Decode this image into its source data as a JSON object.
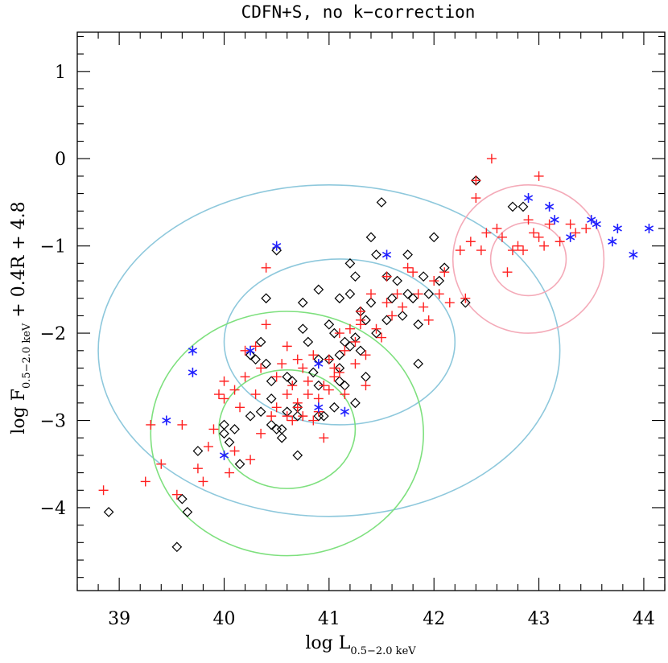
{
  "chart_data": {
    "type": "scatter",
    "title": "CDFN+S, no k−correction",
    "xlabel": {
      "main": "log L",
      "subscript": "0.5−2.0 keV"
    },
    "ylabel": {
      "main": "log F",
      "subscript": "0.5−2.0 keV",
      "suffix": " + 0.4R + 4.8"
    },
    "xlim": [
      38.6,
      44.2
    ],
    "ylim": [
      -4.95,
      1.45
    ],
    "x_ticks": [
      39,
      40,
      41,
      42,
      43,
      44
    ],
    "x_tick_labels": [
      "39",
      "40",
      "41",
      "42",
      "43",
      "44"
    ],
    "y_ticks": [
      1,
      0,
      -1,
      -2,
      -3,
      -4
    ],
    "y_tick_labels": [
      "1",
      "0",
      "−1",
      "−2",
      "−3",
      "−4"
    ],
    "colors": {
      "diamond": "#000000",
      "plus": "#ff2020",
      "asterisk": "#2020ff",
      "cyan_ellipse": "#8ec8dc",
      "green_ellipse": "#7ee07e",
      "pink_ellipse": "#f4aab8"
    },
    "ellipses": [
      {
        "name": "cyan-outer",
        "color": "cyan",
        "cx": 41.0,
        "cy": -2.2,
        "rx": 2.2,
        "ry": 1.9
      },
      {
        "name": "cyan-inner",
        "color": "cyan",
        "cx": 41.1,
        "cy": -2.1,
        "rx": 1.1,
        "ry": 0.95
      },
      {
        "name": "green-outer",
        "color": "green",
        "cx": 40.6,
        "cy": -3.15,
        "rx": 1.3,
        "ry": 1.4
      },
      {
        "name": "green-inner",
        "color": "green",
        "cx": 40.6,
        "cy": -3.1,
        "rx": 0.65,
        "ry": 0.68
      },
      {
        "name": "pink-outer",
        "color": "pink",
        "cx": 42.9,
        "cy": -1.15,
        "rx": 0.72,
        "ry": 0.85
      },
      {
        "name": "pink-inner",
        "color": "pink",
        "cx": 42.9,
        "cy": -1.15,
        "rx": 0.36,
        "ry": 0.42
      }
    ],
    "series": [
      {
        "name": "diamonds",
        "marker": "diamond",
        "x": [
          38.9,
          39.55,
          39.6,
          39.65,
          39.75,
          40.0,
          40.0,
          40.05,
          40.15,
          40.1,
          40.25,
          40.25,
          40.3,
          40.35,
          40.4,
          40.4,
          40.45,
          40.45,
          40.45,
          40.5,
          40.5,
          40.55,
          40.6,
          40.6,
          40.65,
          40.7,
          40.7,
          40.7,
          40.75,
          40.8,
          40.85,
          40.9,
          40.9,
          40.95,
          41.0,
          41.0,
          41.05,
          41.1,
          41.1,
          41.1,
          41.1,
          41.15,
          41.15,
          41.2,
          41.2,
          41.2,
          41.25,
          41.25,
          41.3,
          41.3,
          41.35,
          41.4,
          41.4,
          41.45,
          41.45,
          41.5,
          41.55,
          41.55,
          41.6,
          41.65,
          41.7,
          41.75,
          41.8,
          41.85,
          41.85,
          41.9,
          41.95,
          42.0,
          42.05,
          42.1,
          42.3,
          42.4,
          42.75,
          42.85,
          40.9,
          41.05,
          41.25,
          40.75,
          40.55,
          41.75,
          41.35,
          40.35,
          40.9
        ],
        "y": [
          -4.05,
          -4.45,
          -3.9,
          -4.05,
          -3.35,
          -3.05,
          -3.15,
          -3.25,
          -3.5,
          -3.1,
          -2.95,
          -2.25,
          -2.3,
          -2.1,
          -2.35,
          -1.6,
          -3.05,
          -2.55,
          -2.75,
          -3.1,
          -1.05,
          -3.1,
          -2.5,
          -2.9,
          -2.55,
          -2.85,
          -2.95,
          -3.4,
          -1.65,
          -2.1,
          -2.45,
          -2.3,
          -1.5,
          -2.95,
          -1.9,
          -2.3,
          -2.0,
          -1.6,
          -2.25,
          -2.4,
          -2.55,
          -2.1,
          -2.6,
          -2.15,
          -1.2,
          -1.55,
          -2.05,
          -2.8,
          -1.75,
          -2.2,
          -2.5,
          -1.65,
          -0.9,
          -1.1,
          -2.0,
          -0.5,
          -1.85,
          -1.35,
          -1.6,
          -1.4,
          -1.8,
          -1.1,
          -1.6,
          -1.9,
          -2.35,
          -1.35,
          -1.55,
          -0.9,
          -1.4,
          -1.25,
          -1.65,
          -0.25,
          -0.55,
          -0.55,
          -2.95,
          -2.85,
          -1.35,
          -1.95,
          -3.2,
          -1.55,
          -1.85,
          -2.9,
          -2.6
        ]
      },
      {
        "name": "plus",
        "marker": "plus",
        "x": [
          38.85,
          39.25,
          39.3,
          39.4,
          39.55,
          39.6,
          39.75,
          39.8,
          39.85,
          39.9,
          39.95,
          40.0,
          40.05,
          40.1,
          40.1,
          40.15,
          40.2,
          40.25,
          40.3,
          40.3,
          40.35,
          40.35,
          40.4,
          40.45,
          40.5,
          40.5,
          40.55,
          40.6,
          40.6,
          40.65,
          40.65,
          40.7,
          40.7,
          40.75,
          40.75,
          40.8,
          40.8,
          40.85,
          40.85,
          40.9,
          40.95,
          40.95,
          41.0,
          41.0,
          41.05,
          41.1,
          41.1,
          41.15,
          41.15,
          41.2,
          41.25,
          41.25,
          41.3,
          41.3,
          41.35,
          41.35,
          41.4,
          41.45,
          41.5,
          41.55,
          41.55,
          41.6,
          41.65,
          41.7,
          41.75,
          41.8,
          41.85,
          41.9,
          41.95,
          42.0,
          42.05,
          42.1,
          42.15,
          42.25,
          42.3,
          42.35,
          42.4,
          42.45,
          42.5,
          42.55,
          42.6,
          42.65,
          42.7,
          42.75,
          42.8,
          42.85,
          42.9,
          42.95,
          43.0,
          43.05,
          43.1,
          43.2,
          43.3,
          43.35,
          43.45,
          40.0,
          40.4,
          40.7,
          41.05,
          40.2,
          41.3,
          40.6,
          40.9,
          42.4,
          43.0
        ],
        "y": [
          -3.8,
          -3.7,
          -3.05,
          -3.5,
          -3.85,
          -3.05,
          -3.55,
          -3.7,
          -3.3,
          -3.1,
          -2.7,
          -2.75,
          -3.6,
          -3.35,
          -2.65,
          -2.85,
          -2.5,
          -3.45,
          -2.7,
          -2.15,
          -2.4,
          -3.15,
          -1.25,
          -2.95,
          -2.85,
          -2.5,
          -2.35,
          -2.15,
          -2.7,
          -2.6,
          -3.0,
          -2.3,
          -2.85,
          -2.4,
          -2.95,
          -2.55,
          -2.7,
          -2.25,
          -3.0,
          -2.9,
          -2.6,
          -3.2,
          -2.65,
          -2.3,
          -2.5,
          -2.0,
          -2.45,
          -2.2,
          -2.7,
          -1.95,
          -2.1,
          -2.35,
          -1.75,
          -1.9,
          -2.25,
          -2.6,
          -1.55,
          -1.95,
          -2.05,
          -1.65,
          -1.35,
          -1.8,
          -1.55,
          -1.7,
          -1.25,
          -1.3,
          -1.55,
          -1.7,
          -1.85,
          -1.4,
          -1.55,
          -1.3,
          -1.65,
          -1.05,
          -1.6,
          -0.95,
          -0.45,
          -1.05,
          -0.85,
          0.0,
          -0.8,
          -0.9,
          -1.3,
          -1.05,
          -1.0,
          -1.05,
          -0.7,
          -0.85,
          -0.2,
          -1.0,
          -0.75,
          -0.95,
          -0.75,
          -0.85,
          -0.8,
          -2.55,
          -1.9,
          -2.8,
          -2.4,
          -2.2,
          -1.85,
          -2.95,
          -2.75,
          -0.25,
          -0.9
        ]
      },
      {
        "name": "asterisks",
        "marker": "asterisk",
        "x": [
          39.45,
          39.7,
          39.7,
          40.0,
          40.25,
          40.5,
          40.9,
          40.9,
          41.15,
          41.55,
          42.9,
          43.1,
          43.15,
          43.3,
          43.5,
          43.55,
          43.7,
          43.75,
          43.9,
          44.05
        ],
        "y": [
          -3.0,
          -2.2,
          -2.45,
          -3.4,
          -2.2,
          -1.0,
          -2.35,
          -2.85,
          -2.9,
          -1.1,
          -0.45,
          -0.55,
          -0.7,
          -0.9,
          -0.7,
          -0.75,
          -0.95,
          -0.8,
          -1.1,
          -0.8
        ]
      }
    ]
  }
}
